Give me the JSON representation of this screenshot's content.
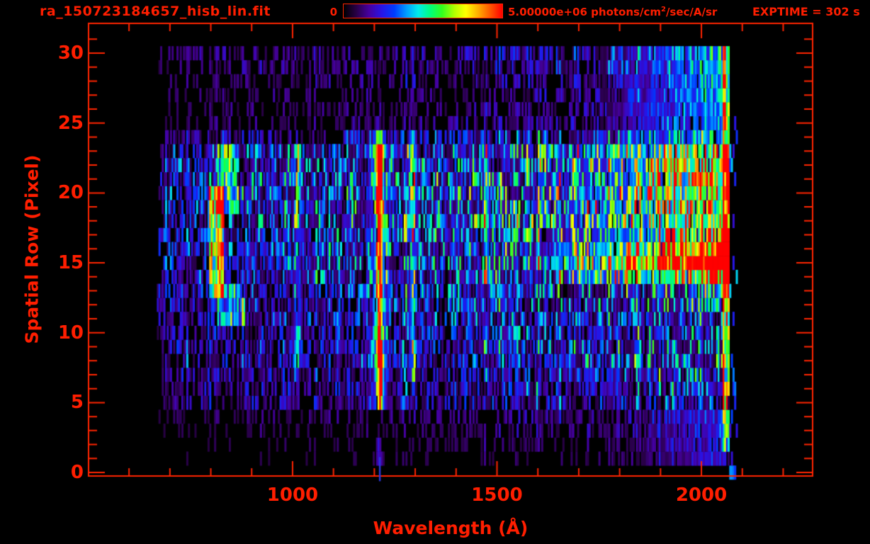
{
  "header": {
    "title": "ra_150723184657_hisb_lin.fit",
    "exptime_label": "EXPTIME = 302 s",
    "colorbar": {
      "min_label": "0",
      "max_label_prefix": "5.00000e+06 photons/cm",
      "max_label_sup": "2",
      "max_label_suffix": "/sec/A/sr",
      "min_value": 0,
      "max_value": 5000000
    }
  },
  "chart_data": {
    "type": "heatmap",
    "title": "ra_150723184657_hisb_lin.fit",
    "xlabel": "Wavelength (Å)",
    "ylabel": "Spatial Row (Pixel)",
    "exptime_seconds": 302,
    "x_axis_range": [
      501,
      2272
    ],
    "y_axis_range": [
      -0.25,
      32.13
    ],
    "x_ticks_major": [
      1000,
      1500,
      2000
    ],
    "x_tick_minor_step": 100,
    "x_minor_range": [
      600,
      2200
    ],
    "y_ticks_major": [
      0,
      5,
      10,
      15,
      20,
      25,
      30
    ],
    "y_tick_minor_step": 1,
    "y_minor_range": [
      0,
      31
    ],
    "grid": false,
    "axis_color": "#ff2400",
    "text_color": "#ff1e00",
    "background_color": "#000000",
    "colorbar_range": [
      0,
      5000000
    ],
    "colormap_stops": [
      [
        0,
        "#000000"
      ],
      [
        0.08,
        "#280046"
      ],
      [
        0.16,
        "#4600a0"
      ],
      [
        0.24,
        "#2814e6"
      ],
      [
        0.32,
        "#003cff"
      ],
      [
        0.4,
        "#00a0ff"
      ],
      [
        0.47,
        "#00ebeb"
      ],
      [
        0.55,
        "#00ff78"
      ],
      [
        0.62,
        "#32ff1e"
      ],
      [
        0.7,
        "#b4ff00"
      ],
      [
        0.77,
        "#ffff00"
      ],
      [
        0.85,
        "#ffaa00"
      ],
      [
        0.93,
        "#ff5000"
      ],
      [
        1,
        "#ff0000"
      ]
    ],
    "data_lambda_range": [
      668,
      2086
    ],
    "bin_width_angstrom": 4,
    "spatial_rows": 31,
    "seed": 7,
    "row_profile": [
      0.03,
      0.07,
      0.08,
      0.1,
      0.12,
      0.22,
      0.24,
      0.25,
      0.3,
      0.3,
      0.28,
      0.3,
      0.32,
      0.36,
      0.4,
      0.42,
      0.42,
      0.42,
      0.44,
      0.46,
      0.46,
      0.44,
      0.44,
      0.42,
      0.26,
      0.14,
      0.13,
      0.13,
      0.14,
      0.16,
      0.18
    ],
    "x_gain": {
      "base": 0.62,
      "slope": 0.85,
      "power": 1.2
    },
    "features": {
      "vlines": [
        {
          "name": "emission-line-1012",
          "lambda": 1012,
          "sigma": 5,
          "row_amps": {
            "18-23": 0.5,
            "8-10": 0.45,
            "11-17": 0.15,
            "5-7": 0.1
          }
        },
        {
          "name": "lyman-alpha-1213",
          "lambda": 1213,
          "sigma": 5.5,
          "row_amps": {
            "1-2": 0.16,
            "5": 0.55,
            "6-9": 0.95,
            "10": 0.8,
            "11-13": 0.62,
            "14": 0.55,
            "15-18": 0.68,
            "19-22": 0.95,
            "23": 0.7,
            "24": 0.55
          },
          "wing_sigma": 14,
          "wing_amp": 0.22,
          "wing_rows": "5-24"
        },
        {
          "name": "emission-line-1293",
          "lambda": 1293,
          "sigma": 5,
          "row_amps": {
            "19-24": 0.5,
            "7-13": 0.32,
            "14-18": 0.22
          }
        },
        {
          "name": "emission-line-1475",
          "lambda": 1475,
          "sigma": 5,
          "row_amps": {
            "14-23": 0.28
          }
        }
      ],
      "blobs": [
        {
          "name": "left-green-blob",
          "l0": 795,
          "l1": 832,
          "r0": 13,
          "r1": 20,
          "amp": 0.6
        },
        {
          "name": "left-blob-upper-arm",
          "l0": 815,
          "l1": 868,
          "r0": 19,
          "r1": 23,
          "amp": 0.32
        },
        {
          "name": "left-blob-lower-arm",
          "l0": 818,
          "l1": 885,
          "r0": 11,
          "r1": 13,
          "amp": 0.27
        }
      ],
      "ramps": [
        {
          "name": "row15-bright-trace",
          "rows": "15",
          "l0": 1615,
          "l1": 2055,
          "a0": 0.12,
          "a1": 0.82
        },
        {
          "name": "row14-trace",
          "rows": "14",
          "l0": 1640,
          "l1": 2055,
          "a0": 0.06,
          "a1": 0.42
        },
        {
          "name": "row16-trace",
          "rows": "16",
          "l0": 1660,
          "l1": 2055,
          "a0": 0.04,
          "a1": 0.26
        },
        {
          "name": "upper-continuum",
          "rows": "16-23",
          "l0": 1600,
          "l1": 2055,
          "a0": 0.04,
          "a1": 0.3
        },
        {
          "name": "mid-continuum",
          "rows": "14-23",
          "l0": 1700,
          "l1": 2055,
          "a0": 0,
          "a1": 0.12
        },
        {
          "name": "top-rows-right-brightening",
          "rows": "24-30",
          "l0": 1700,
          "l1": 2060,
          "a0": 0,
          "a1": 0.28
        },
        {
          "name": "bottom-rows-right-brightening",
          "rows": "1-4",
          "l0": 1750,
          "l1": 2060,
          "a0": 0,
          "a1": 0.16
        }
      ],
      "edge_column": {
        "name": "detector-edge-bright-column",
        "l0": 2053,
        "l1": 2068,
        "row_amps": {
          "13-23": 0.92,
          "24-30": 0.62,
          "5-12": 0.5,
          "2-4": 0.38
        }
      },
      "sparse_right_noise": {
        "l0": 2068,
        "l1": 2092,
        "occupancy": 0.13,
        "value": 0.3
      },
      "axis_crossing_mark": {
        "lambda": 1213,
        "color": "#2a35d8"
      }
    }
  }
}
